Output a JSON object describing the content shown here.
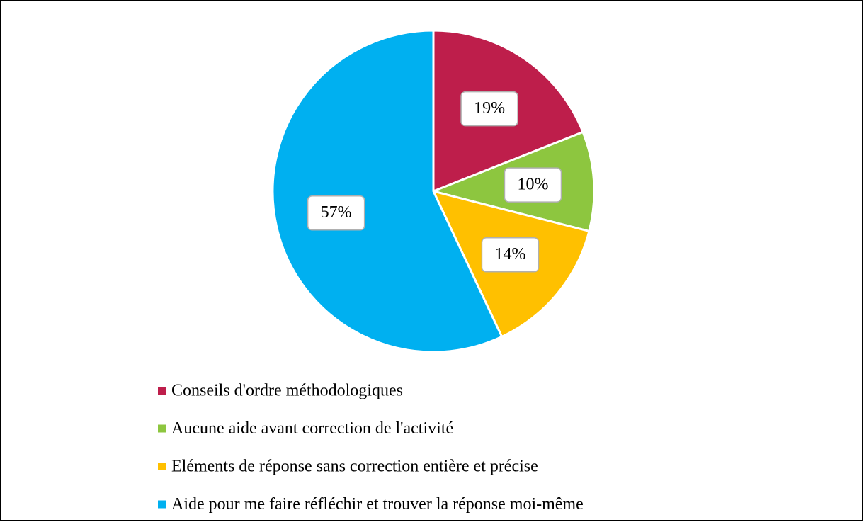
{
  "chart_data": {
    "type": "pie",
    "categories": [
      "Conseils d'ordre méthodologiques",
      "Aucune aide avant correction de l'activité",
      "Eléments de réponse sans correction entière et précise",
      "Aide pour me faire réfléchir et trouver la réponse moi-même"
    ],
    "values": [
      19,
      10,
      14,
      57
    ],
    "value_labels": [
      "19%",
      "10%",
      "14%",
      "57%"
    ],
    "colors": [
      "#be1e4b",
      "#8dc63f",
      "#ffc000",
      "#00b0f0"
    ],
    "legend": "bottom"
  }
}
